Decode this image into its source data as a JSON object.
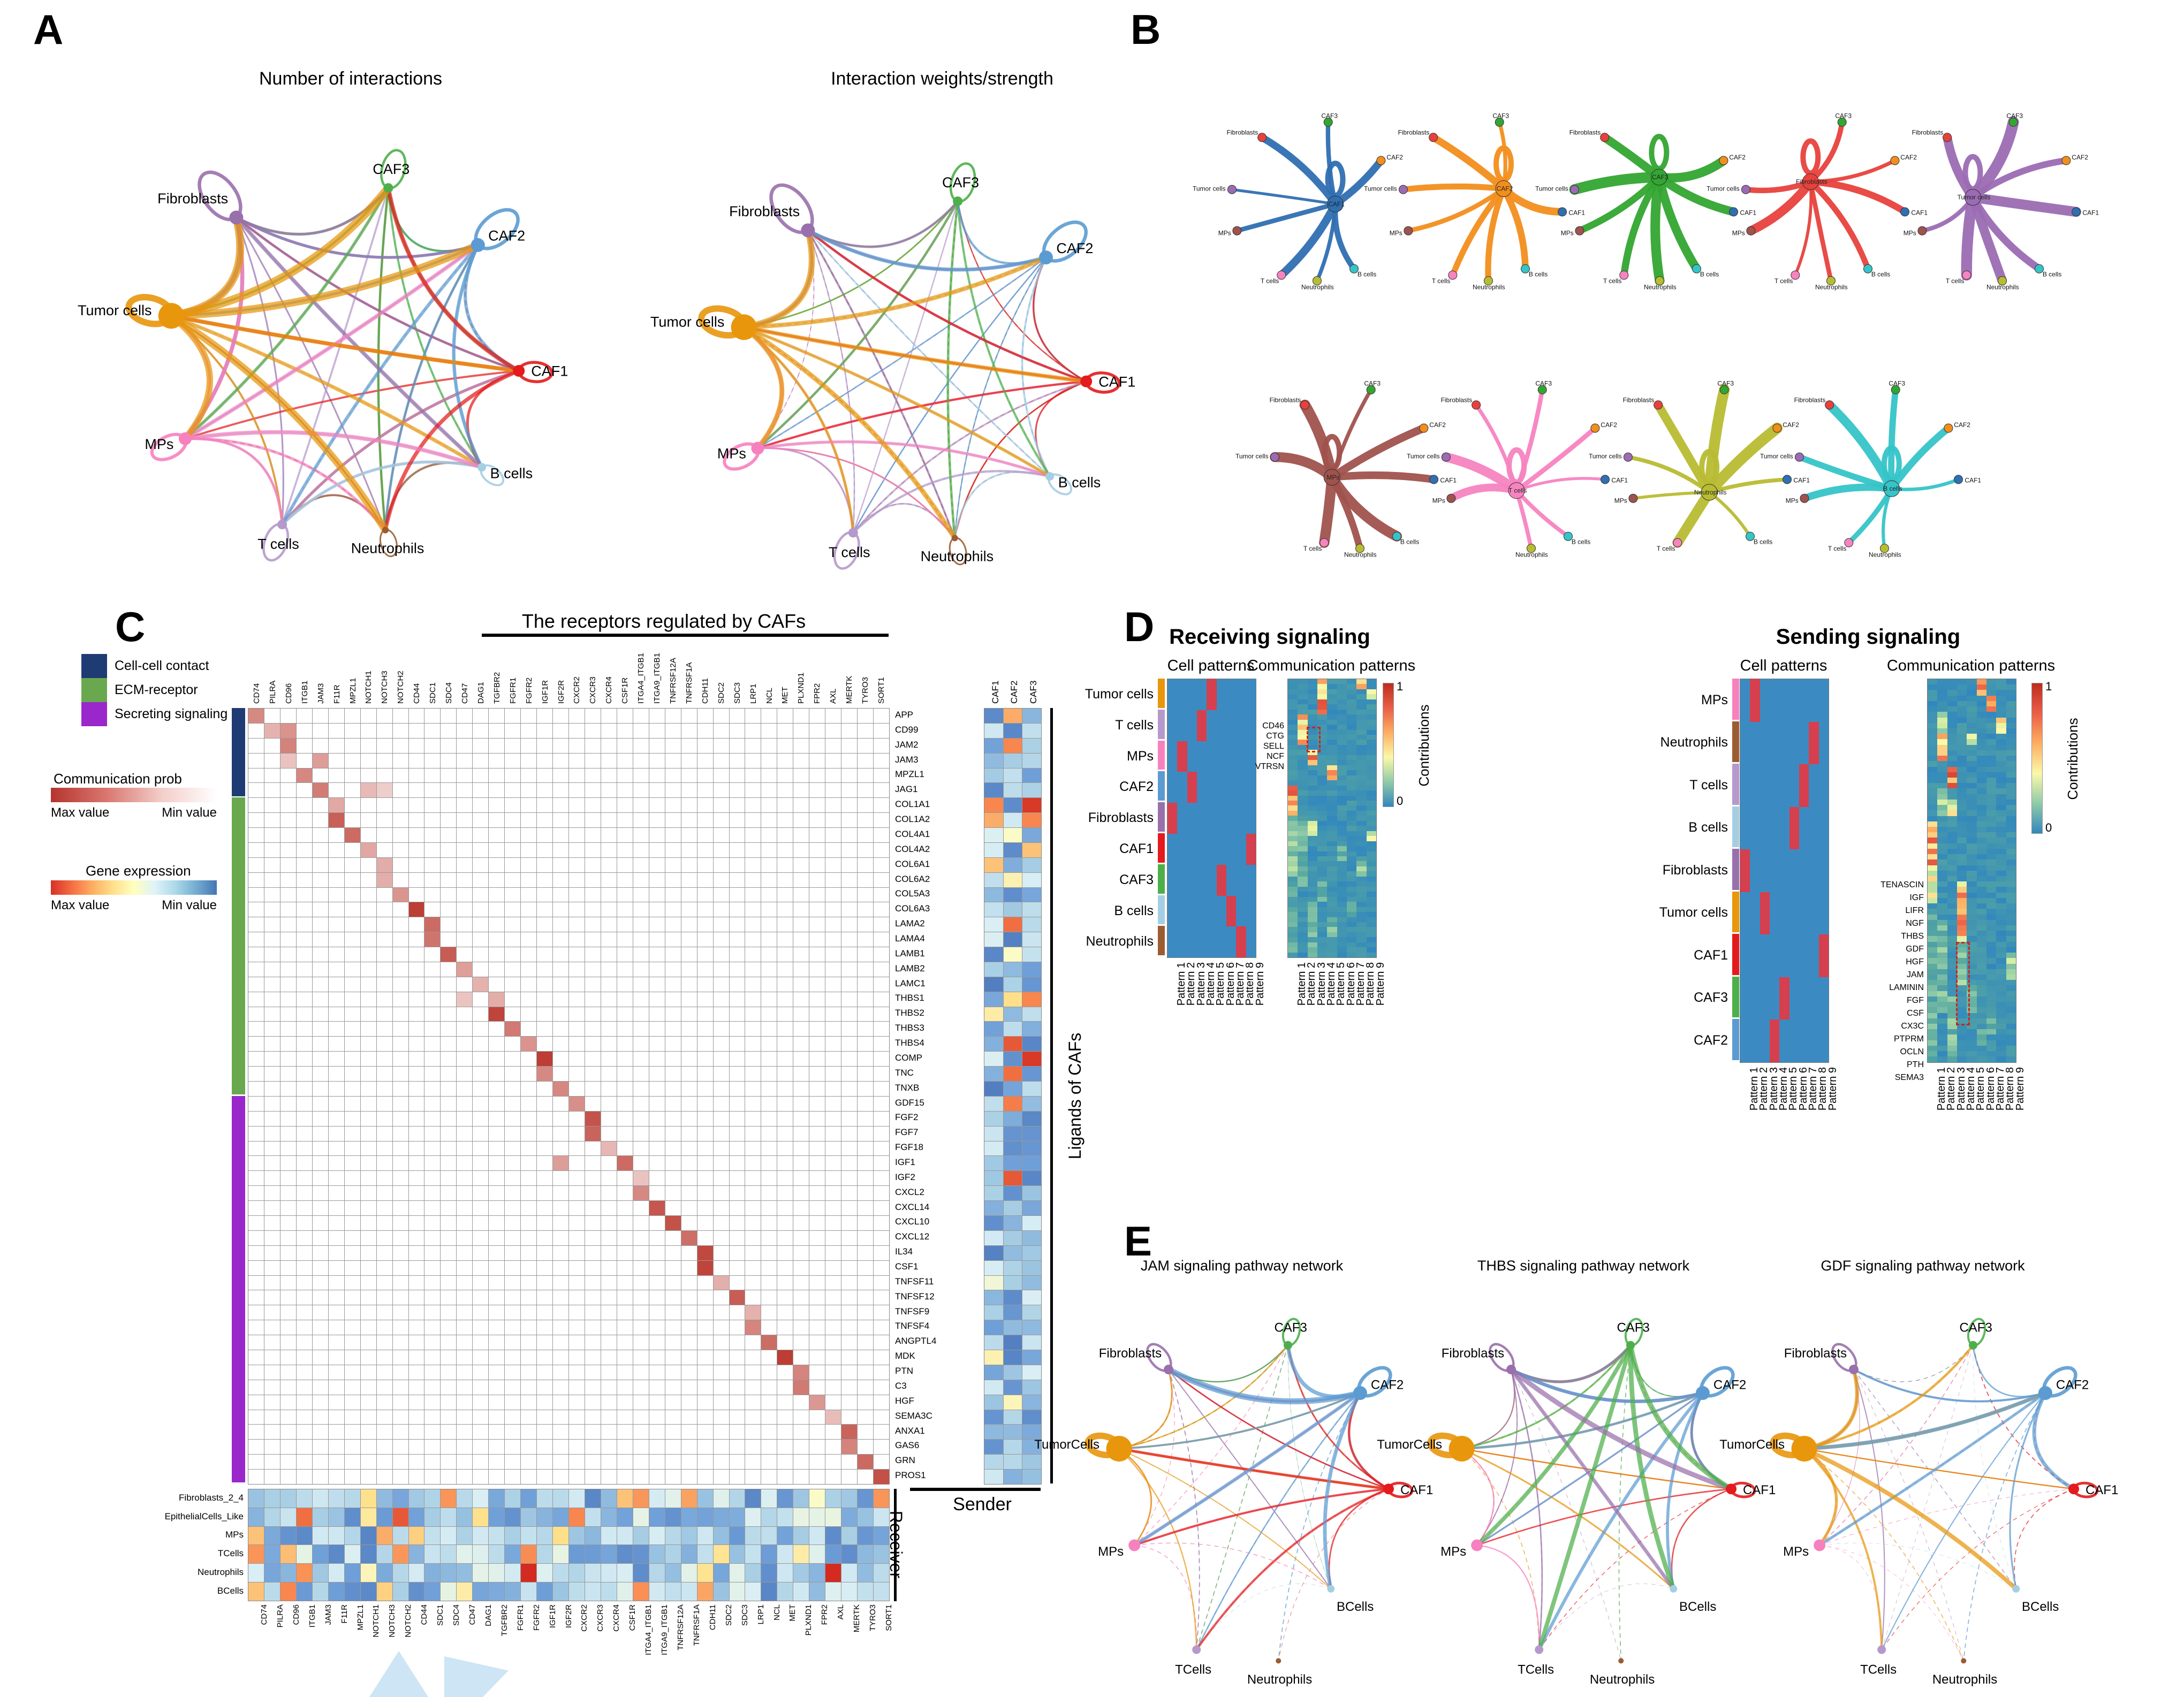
{
  "panelA": {
    "label": "A",
    "titles": [
      "Number of interactions",
      "Interaction weights/strength"
    ],
    "nodes": [
      {
        "name": "CAF3",
        "color": "#4daf4a",
        "angle": 75,
        "size": 9,
        "loop": 66
      },
      {
        "name": "Fibroblasts",
        "color": "#9970ab",
        "angle": 127,
        "size": 13,
        "loop": 92
      },
      {
        "name": "CAF2",
        "color": "#5b9bd1",
        "angle": 40,
        "size": 13,
        "loop": 84
      },
      {
        "name": "Tumor cells",
        "color": "#e8960c",
        "angle": 166,
        "size": 24,
        "loop": 74
      },
      {
        "name": "CAF1",
        "color": "#e41a1c",
        "angle": -4,
        "size": 11,
        "loop": 56
      },
      {
        "name": "MPs",
        "color": "#f781bf",
        "angle": -153,
        "size": 12,
        "loop": 62
      },
      {
        "name": "B cells",
        "color": "#a6cee3",
        "angle": -38,
        "size": 8,
        "loop": 44
      },
      {
        "name": "T cells",
        "color": "#b699cc",
        "angle": -110,
        "size": 9,
        "loop": 64
      },
      {
        "name": "Neutrophils",
        "color": "#9c5c31",
        "angle": -76,
        "size": 6,
        "loop": 46
      }
    ]
  },
  "panelB": {
    "label": "B",
    "node_labels": [
      "CAF3",
      "Fibroblasts",
      "CAF2",
      "Tumor cells",
      "CAF1",
      "MPs",
      "T cells",
      "Neutrophils",
      "B cells"
    ],
    "palette": {
      "Fibroblasts": "#e8413c",
      "CAF3": "#33a532",
      "CAF2": "#f28e1c",
      "Tumor cells": "#9b6bb3",
      "CAF1": "#2f6fb2",
      "MPs": "#a0524d",
      "T cells": "#f783c0",
      "Neutrophils": "#b8bc32",
      "B cells": "#35c4c8"
    },
    "plots": [
      {
        "hub": "CAF1"
      },
      {
        "hub": "CAF2"
      },
      {
        "hub": "CAF3"
      },
      {
        "hub": "Fibroblasts"
      },
      {
        "hub": "Tumor cells"
      },
      {
        "hub": "MPs"
      },
      {
        "hub": "T cells"
      },
      {
        "hub": "Neutrophils"
      },
      {
        "hub": "B cells"
      }
    ]
  },
  "panelC": {
    "label": "C",
    "title": "The receptors regulated by CAFs",
    "receptors": [
      "CD74",
      "PILRA",
      "CD96",
      "ITGB1",
      "JAM3",
      "F11R",
      "MPZL1",
      "NOTCH1",
      "NOTCH3",
      "NOTCH2",
      "CD44",
      "SDC1",
      "SDC4",
      "CD47",
      "DAG1",
      "TGFBR2",
      "FGFR1",
      "FGFR2",
      "IGF1R",
      "IGF2R",
      "CXCR2",
      "CXCR3",
      "CXCR4",
      "CSF1R",
      "ITGA4_ITGB1",
      "ITGA9_ITGB1",
      "TNFRSF12A",
      "TNFRSF1A",
      "CDH11",
      "SDC2",
      "SDC3",
      "LRP1",
      "NCL",
      "MET",
      "PLXND1",
      "FPR2",
      "AXL",
      "MERTK",
      "TYRO3",
      "SORT1"
    ],
    "ligands": [
      "APP",
      "CD99",
      "JAM2",
      "JAM3",
      "MPZL1",
      "JAG1",
      "COL1A1",
      "COL1A2",
      "COL4A1",
      "COL4A2",
      "COL6A1",
      "COL6A2",
      "COL5A3",
      "COL6A3",
      "LAMA2",
      "LAMA4",
      "LAMB1",
      "LAMB2",
      "LAMC1",
      "THBS1",
      "THBS2",
      "THBS3",
      "THBS4",
      "COMP",
      "TNC",
      "TNXB",
      "GDF15",
      "FGF2",
      "FGF7",
      "FGF18",
      "IGF1",
      "IGF2",
      "CXCL2",
      "CXCL14",
      "CXCL10",
      "CXCL12",
      "IL34",
      "CSF1",
      "TNFSF11",
      "TNFSF12",
      "TNFSF9",
      "TNFSF4",
      "ANGPTL4",
      "MDK",
      "PTN",
      "C3",
      "HGF",
      "SEMA3C",
      "ANXA1",
      "GAS6",
      "GRN",
      "PROS1"
    ],
    "categories": [
      {
        "label": "Cell-cell contact",
        "color": "#1f3b73",
        "rows": 6
      },
      {
        "label": "ECM-receptor",
        "color": "#6aa84f",
        "rows": 20
      },
      {
        "label": "Secreting signaling",
        "color": "#9927cc",
        "rows": 26
      }
    ],
    "prob_scale": {
      "title": "Communication prob",
      "max": "Max value",
      "min": "Min value"
    },
    "expr_scale": {
      "title": "Gene expression",
      "max": "Max value",
      "min": "Min value"
    },
    "sender_cols": [
      "CAF1",
      "CAF2",
      "CAF3"
    ],
    "sender_label": "Sender",
    "receiver_label": "Receiver",
    "ligands_axis_label": "Ligands of CAFs",
    "receiver_rows": [
      "Fibroblasts_2_4",
      "EpithelialCells_Like",
      "MPs",
      "TCells",
      "Neutrophils",
      "BCells"
    ]
  },
  "panelD": {
    "label": "D",
    "pattern_prefix": "Pattern",
    "colorbar": {
      "label": "Contributions",
      "max": "1",
      "min": "0"
    },
    "receiving": {
      "title": "Receiving signaling",
      "cell_title": "Cell patterns",
      "comm_title": "Communication patterns",
      "rows": [
        "Tumor cells",
        "T cells",
        "MPs",
        "CAF2",
        "Fibroblasts",
        "CAF1",
        "CAF3",
        "B cells",
        "Neutrophils"
      ],
      "row_colors": [
        "#e8960c",
        "#b699cc",
        "#f781bf",
        "#5b9bd1",
        "#9970ab",
        "#e41a1c",
        "#4daf4a",
        "#a6cee3",
        "#9c5c31"
      ],
      "patterns": [
        5,
        4,
        2,
        3,
        1,
        9,
        6,
        7,
        8
      ],
      "annotations": [
        "CD46",
        "CTG",
        "SELL",
        "NCF",
        "VTRSN"
      ]
    },
    "sending": {
      "title": "Sending signaling",
      "cell_title": "Cell patterns",
      "comm_title": "Communication patterns",
      "rows": [
        "MPs",
        "Neutrophils",
        "T cells",
        "B cells",
        "Fibroblasts",
        "Tumor cells",
        "CAF1",
        "CAF3",
        "CAF2"
      ],
      "row_colors": [
        "#f781bf",
        "#9c5c31",
        "#b699cc",
        "#a6cee3",
        "#9970ab",
        "#e8960c",
        "#e41a1c",
        "#4daf4a",
        "#5b9bd1"
      ],
      "patterns": [
        2,
        8,
        7,
        6,
        1,
        3,
        9,
        5,
        4
      ],
      "annotations": [
        "TENASCIN",
        "IGF",
        "LIFR",
        "NGF",
        "THBS",
        "GDF",
        "HGF",
        "JAM",
        "LAMININ",
        "FGF",
        "CSF",
        "CX3C",
        "PTPRM",
        "OCLN",
        "PTH",
        "SEMA3"
      ]
    }
  },
  "panelE": {
    "label": "E",
    "plots": [
      {
        "title": "JAM signaling pathway network",
        "emphasis": {
          "CAF2": 6.5,
          "CAF1": 3.6,
          "Fibroblasts": 2.8,
          "TumorCells": 2.0,
          "MPs": 2.0,
          "CAF3": 1.4,
          "TCells": 0.7,
          "BCells": 0.7,
          "Neutrophils": 0
        }
      },
      {
        "title": "THBS signaling pathway network",
        "emphasis": {
          "CAF3": 5.5,
          "Fibroblasts": 5.0,
          "CAF2": 4.0,
          "CAF1": 2.0,
          "TumorCells": 2.0,
          "MPs": 1.4,
          "TCells": 0.9,
          "BCells": 0.7,
          "Neutrophils": 0
        }
      },
      {
        "title": "GDF signaling pathway network",
        "emphasis": {
          "TumorCells": 4.6,
          "CAF2": 4.0,
          "CAF1": 1.1,
          "Fibroblasts": 1.3,
          "MPs": 0.9,
          "TCells": 0.5,
          "BCells": 0.5,
          "CAF3": 0.5,
          "Neutrophils": 0
        }
      }
    ],
    "nodes": [
      {
        "name": "CAF3",
        "color": "#4daf4a",
        "angle": 75,
        "rad": 1,
        "size": 8,
        "loop": 46
      },
      {
        "name": "Fibroblasts",
        "color": "#9970ab",
        "angle": 128,
        "rad": 1,
        "size": 9,
        "loop": 52
      },
      {
        "name": "CAF2",
        "color": "#5b9bd1",
        "angle": 38,
        "rad": 1,
        "size": 13,
        "loop": 62
      },
      {
        "name": "TumorCells",
        "color": "#e8960c",
        "angle": 168,
        "rad": 1,
        "size": 24,
        "loop": 54
      },
      {
        "name": "CAF1",
        "color": "#e41a1c",
        "angle": -5,
        "rad": 1,
        "size": 10,
        "loop": 40
      },
      {
        "name": "MPs",
        "color": "#f781bf",
        "angle": -150,
        "rad": 1,
        "size": 11,
        "loop": 0
      },
      {
        "name": "BCells",
        "color": "#a6cee3",
        "angle": -55,
        "rad": 1,
        "size": 7,
        "loop": 0
      },
      {
        "name": "TCells",
        "color": "#b699cc",
        "angle": -108,
        "rad": 1.33,
        "size": 8,
        "loop": 0
      },
      {
        "name": "Neutrophils",
        "color": "#9c5c31",
        "angle": -82,
        "rad": 1.36,
        "size": 5,
        "loop": 0
      }
    ]
  }
}
